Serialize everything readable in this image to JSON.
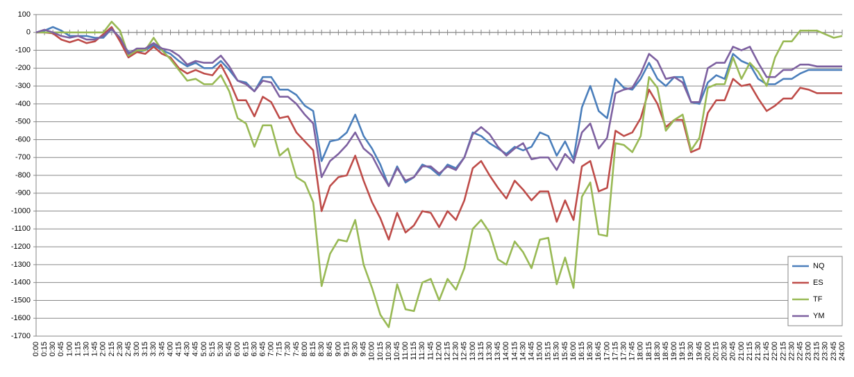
{
  "chart_data": {
    "type": "line",
    "categories": [
      "0:00",
      "0:15",
      "0:30",
      "0:45",
      "1:00",
      "1:15",
      "1:30",
      "1:45",
      "2:00",
      "2:15",
      "2:30",
      "2:45",
      "3:00",
      "3:15",
      "3:30",
      "3:45",
      "4:00",
      "4:15",
      "4:30",
      "4:45",
      "5:00",
      "5:15",
      "5:30",
      "5:45",
      "6:00",
      "6:15",
      "6:30",
      "6:45",
      "7:00",
      "7:15",
      "7:30",
      "7:45",
      "8:00",
      "8:15",
      "8:30",
      "8:45",
      "9:00",
      "9:15",
      "9:30",
      "9:45",
      "10:00",
      "10:15",
      "10:30",
      "10:45",
      "11:00",
      "11:15",
      "11:30",
      "11:45",
      "12:00",
      "12:15",
      "12:30",
      "12:45",
      "13:00",
      "13:15",
      "13:30",
      "13:45",
      "14:00",
      "14:15",
      "14:30",
      "14:45",
      "15:00",
      "15:15",
      "15:30",
      "15:45",
      "16:00",
      "16:15",
      "16:30",
      "16:45",
      "17:00",
      "17:15",
      "17:30",
      "17:45",
      "18:00",
      "18:15",
      "18:30",
      "18:45",
      "19:00",
      "19:15",
      "19:30",
      "19:45",
      "20:00",
      "20:15",
      "20:30",
      "20:45",
      "21:00",
      "21:15",
      "21:30",
      "21:45",
      "22:00",
      "22:15",
      "22:30",
      "22:45",
      "23:00",
      "23:15",
      "23:30",
      "23:45",
      "24:00"
    ],
    "series": [
      {
        "name": "NQ",
        "color": "#4a7ebb",
        "values": [
          0,
          10,
          30,
          10,
          -20,
          -20,
          -20,
          -30,
          -30,
          20,
          -40,
          -110,
          -110,
          -100,
          -70,
          -100,
          -120,
          -160,
          -190,
          -170,
          -200,
          -200,
          -160,
          -210,
          -270,
          -280,
          -330,
          -250,
          -250,
          -320,
          -320,
          -350,
          -410,
          -440,
          -720,
          -610,
          -600,
          -560,
          -460,
          -580,
          -650,
          -740,
          -860,
          -750,
          -840,
          -810,
          -740,
          -760,
          -800,
          -740,
          -760,
          -700,
          -560,
          -580,
          -620,
          -650,
          -680,
          -640,
          -660,
          -640,
          -560,
          -580,
          -690,
          -610,
          -710,
          -420,
          -300,
          -440,
          -480,
          -260,
          -310,
          -320,
          -260,
          -170,
          -260,
          -300,
          -250,
          -250,
          -390,
          -400,
          -280,
          -240,
          -260,
          -120,
          -160,
          -180,
          -260,
          -290,
          -290,
          -260,
          -260,
          -230,
          -210,
          -210,
          -210,
          -210,
          -210
        ]
      },
      {
        "name": "ES",
        "color": "#be4b48",
        "values": [
          0,
          0,
          -5,
          -40,
          -55,
          -40,
          -60,
          -50,
          -10,
          30,
          -50,
          -140,
          -110,
          -120,
          -80,
          -120,
          -140,
          -200,
          -230,
          -210,
          -230,
          -240,
          -180,
          -270,
          -380,
          -380,
          -470,
          -360,
          -390,
          -480,
          -470,
          -560,
          -610,
          -660,
          -1000,
          -860,
          -810,
          -800,
          -690,
          -830,
          -950,
          -1040,
          -1160,
          -1010,
          -1120,
          -1080,
          -1000,
          -1010,
          -1090,
          -1000,
          -1050,
          -940,
          -760,
          -720,
          -800,
          -870,
          -930,
          -830,
          -880,
          -940,
          -890,
          -890,
          -1060,
          -940,
          -1050,
          -750,
          -720,
          -890,
          -870,
          -550,
          -580,
          -560,
          -480,
          -320,
          -400,
          -530,
          -490,
          -490,
          -670,
          -650,
          -450,
          -380,
          -380,
          -260,
          -300,
          -290,
          -370,
          -440,
          -410,
          -370,
          -370,
          -310,
          -320,
          -340,
          -340,
          -340,
          -340
        ]
      },
      {
        "name": "TF",
        "color": "#98b954",
        "values": [
          0,
          0,
          0,
          0,
          0,
          0,
          0,
          0,
          0,
          60,
          10,
          -130,
          -100,
          -100,
          -30,
          -100,
          -150,
          -210,
          -270,
          -260,
          -290,
          -290,
          -240,
          -330,
          -480,
          -510,
          -640,
          -520,
          -520,
          -690,
          -650,
          -810,
          -840,
          -950,
          -1420,
          -1240,
          -1160,
          -1170,
          -1050,
          -1300,
          -1430,
          -1580,
          -1650,
          -1410,
          -1550,
          -1560,
          -1400,
          -1380,
          -1500,
          -1380,
          -1440,
          -1320,
          -1100,
          -1050,
          -1120,
          -1270,
          -1300,
          -1170,
          -1230,
          -1320,
          -1160,
          -1150,
          -1410,
          -1260,
          -1430,
          -920,
          -840,
          -1130,
          -1140,
          -620,
          -630,
          -670,
          -580,
          -250,
          -310,
          -550,
          -490,
          -460,
          -660,
          -590,
          -310,
          -290,
          -290,
          -140,
          -260,
          -170,
          -220,
          -300,
          -140,
          -50,
          -50,
          10,
          10,
          10,
          -10,
          -30,
          -20
        ]
      },
      {
        "name": "YM",
        "color": "#7d60a0",
        "values": [
          0,
          15,
          0,
          -20,
          -30,
          -20,
          -40,
          -40,
          -20,
          20,
          -30,
          -120,
          -90,
          -90,
          -60,
          -90,
          -100,
          -130,
          -180,
          -160,
          -170,
          -170,
          -130,
          -190,
          -270,
          -290,
          -330,
          -270,
          -280,
          -360,
          -360,
          -400,
          -460,
          -510,
          -810,
          -720,
          -680,
          -630,
          -560,
          -650,
          -690,
          -780,
          -860,
          -760,
          -830,
          -810,
          -750,
          -750,
          -790,
          -750,
          -770,
          -700,
          -570,
          -530,
          -570,
          -640,
          -690,
          -650,
          -620,
          -710,
          -700,
          -700,
          -770,
          -680,
          -730,
          -560,
          -510,
          -650,
          -590,
          -340,
          -320,
          -310,
          -230,
          -120,
          -160,
          -260,
          -250,
          -280,
          -390,
          -390,
          -200,
          -170,
          -170,
          -80,
          -100,
          -80,
          -170,
          -250,
          -250,
          -210,
          -210,
          -180,
          -180,
          -190,
          -190,
          -190,
          -190
        ]
      }
    ],
    "ylim": [
      -1700,
      100
    ],
    "yticks": [
      100,
      0,
      -100,
      -200,
      -300,
      -400,
      -500,
      -600,
      -700,
      -800,
      -900,
      -1000,
      -1100,
      -1200,
      -1300,
      -1400,
      -1500,
      -1600,
      -1700
    ],
    "grid": true,
    "legend": "lower right"
  }
}
